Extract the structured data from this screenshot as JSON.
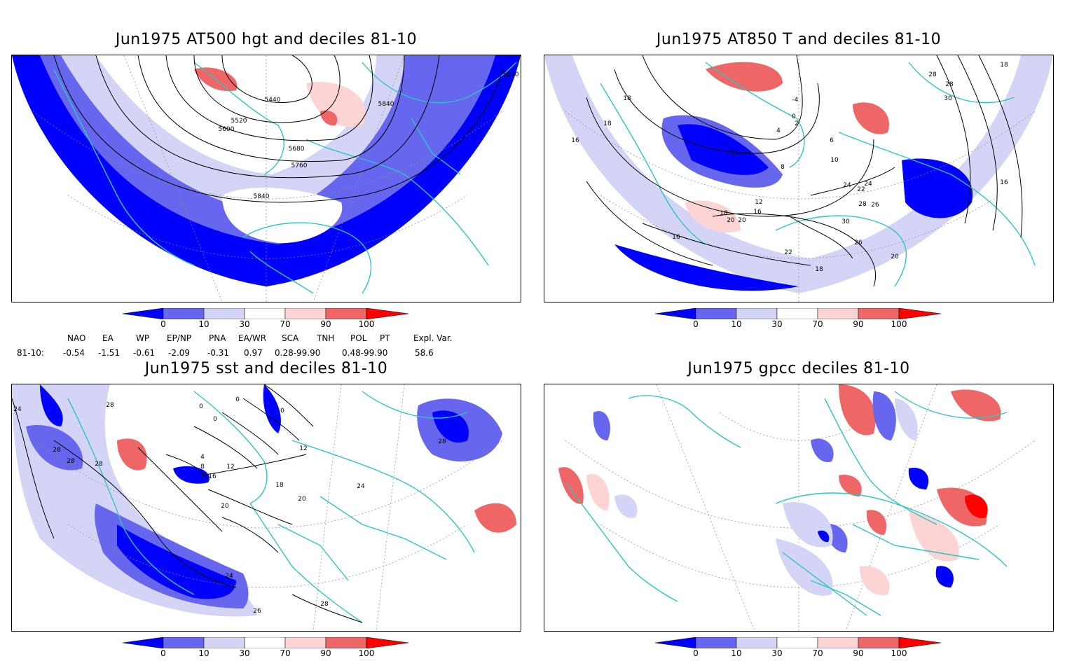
{
  "panels": [
    {
      "id": "p1",
      "title": "Jun1975 AT500 hgt and deciles 81-10",
      "contour_labels": [
        "5840",
        "5440",
        "5840",
        "5520",
        "5600",
        "5680",
        "5760",
        "5840"
      ]
    },
    {
      "id": "p2",
      "title": "Jun1975 AT850 T and deciles 81-10",
      "contour_labels": [
        "18",
        "18",
        "16",
        "10",
        "-4",
        "0",
        "2",
        "4",
        "6",
        "8",
        "10",
        "12",
        "16",
        "18",
        "20",
        "22",
        "24",
        "26",
        "28",
        "30",
        "16",
        "20",
        "28",
        "28",
        "30",
        "18",
        "16",
        "24",
        "26",
        "22",
        "18",
        "20"
      ]
    },
    {
      "id": "p3",
      "title": "Jun1975 sst and deciles 81-10",
      "contour_labels": [
        "24",
        "28",
        "28",
        "28",
        "0",
        "0",
        "0",
        "0",
        "4",
        "8",
        "12",
        "16",
        "18",
        "20",
        "24",
        "26",
        "28",
        "28",
        "28",
        "20",
        "24",
        "12"
      ]
    },
    {
      "id": "p4",
      "title": "Jun1975 gpcc deciles 81-10",
      "contour_labels": []
    }
  ],
  "colorbar": {
    "ticks": [
      "0",
      "10",
      "30",
      "70",
      "90",
      "100"
    ],
    "colors": {
      "lt0": "#0000ff",
      "b0_10": "#6666ee",
      "b10_30": "#d4d4f7",
      "b30_70": "#ffffff",
      "b70_90": "#fcd4d4",
      "b90_100": "#ee6666",
      "gt100": "#ff0000"
    }
  },
  "indices": {
    "headers": [
      "NAO",
      "EA",
      "WP",
      "EP/NP",
      "PNA",
      "EA/WR",
      "SCA",
      "TNH",
      "POL",
      "PT",
      "Expl. Var."
    ],
    "row_label": "81-10:",
    "values": [
      "-0.54",
      "-1.51",
      "-0.61",
      "-2.09",
      "-0.31",
      "0.97",
      "0.28-99.90",
      "0.48-99.90",
      "58.6"
    ]
  },
  "map_colors": {
    "land_outline": "#2ec4c4",
    "contour": "#000000",
    "grid": "#888888"
  }
}
